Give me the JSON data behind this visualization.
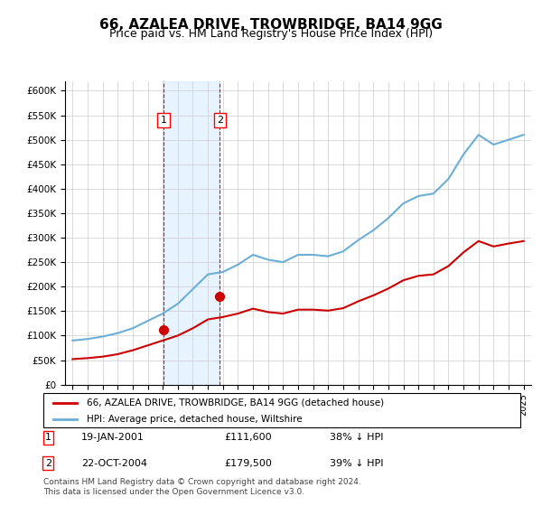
{
  "title": "66, AZALEA DRIVE, TROWBRIDGE, BA14 9GG",
  "subtitle": "Price paid vs. HM Land Registry's House Price Index (HPI)",
  "legend_line1": "66, AZALEA DRIVE, TROWBRIDGE, BA14 9GG (detached house)",
  "legend_line2": "HPI: Average price, detached house, Wiltshire",
  "footnote": "Contains HM Land Registry data © Crown copyright and database right 2024.\nThis data is licensed under the Open Government Licence v3.0.",
  "sale1_date": "19-JAN-2001",
  "sale1_price": 111600,
  "sale1_label": "1",
  "sale1_note": "19-JAN-2001          £111,600          38% ↓ HPI",
  "sale2_date": "22-OCT-2004",
  "sale2_price": 179500,
  "sale2_label": "2",
  "sale2_note": "22-OCT-2004          £179,500          39% ↓ HPI",
  "sale1_x": 2001.05,
  "sale2_x": 2004.8,
  "hpi_color": "#6baed6",
  "property_color": "#cc0000",
  "shade_color": "#ddeeff",
  "marker_color": "#cc0000",
  "ylim": [
    0,
    620000
  ],
  "yticks": [
    0,
    50000,
    100000,
    150000,
    200000,
    250000,
    300000,
    350000,
    400000,
    450000,
    500000,
    550000,
    600000
  ],
  "ytick_labels": [
    "£0",
    "£50K",
    "£100K",
    "£150K",
    "£200K",
    "£250K",
    "£300K",
    "£350K",
    "£400K",
    "£450K",
    "£500K",
    "£550K",
    "£600K"
  ],
  "hpi_years": [
    1995,
    1996,
    1997,
    1998,
    1999,
    2000,
    2001,
    2002,
    2003,
    2004,
    2005,
    2006,
    2007,
    2008,
    2009,
    2010,
    2011,
    2012,
    2013,
    2014,
    2015,
    2016,
    2017,
    2018,
    2019,
    2020,
    2021,
    2022,
    2023,
    2024,
    2025
  ],
  "hpi_values": [
    90000,
    93000,
    98000,
    105000,
    115000,
    130000,
    145000,
    165000,
    195000,
    225000,
    230000,
    245000,
    265000,
    255000,
    250000,
    265000,
    265000,
    262000,
    272000,
    295000,
    315000,
    340000,
    370000,
    385000,
    390000,
    420000,
    470000,
    510000,
    490000,
    500000,
    510000
  ],
  "prop_years": [
    1995,
    1996,
    1997,
    1998,
    1999,
    2000,
    2001,
    2002,
    2003,
    2004,
    2005,
    2006,
    2007,
    2008,
    2009,
    2010,
    2011,
    2012,
    2013,
    2014,
    2015,
    2016,
    2017,
    2018,
    2019,
    2020,
    2021,
    2022,
    2023,
    2024,
    2025
  ],
  "prop_values": [
    52000,
    54000,
    57000,
    62000,
    70000,
    80000,
    90000,
    100000,
    115000,
    133000,
    138000,
    145000,
    155000,
    148000,
    145000,
    153000,
    153000,
    151000,
    156000,
    170000,
    182000,
    196000,
    213000,
    222000,
    225000,
    242000,
    270000,
    293000,
    282000,
    288000,
    293000
  ]
}
